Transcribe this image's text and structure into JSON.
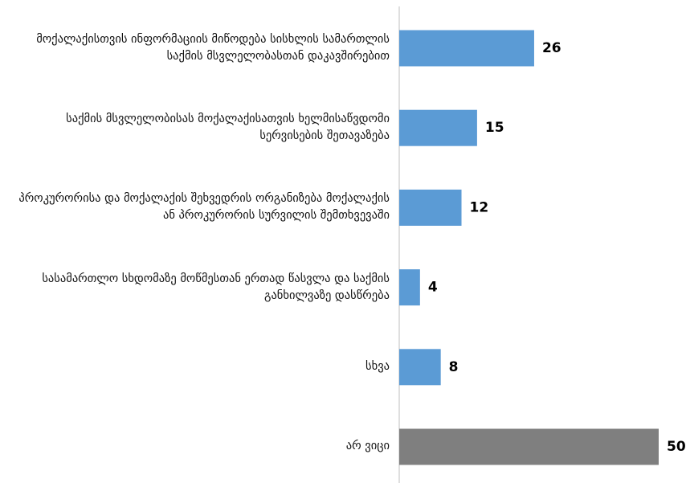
{
  "chart_data": {
    "type": "bar",
    "orientation": "horizontal",
    "categories": [
      "მოქალაქისთვის ინფორმაციის მიწოდება სისხლის სამართლის საქმის მსვლელობასთან დაკავშირებით",
      "საქმის მსვლელობისას მოქალაქისათვის ხელმისაწვდომი სერვისების შეთავაზება",
      "პროკურორისა და მოქალაქის შეხვედრის ორგანიზება მოქალაქის ან პროკურორის სურვილის შემთხვევაში",
      "სასამართლო სხდომაზე მოწმესთან ერთად წასვლა და საქმის განხილვაზე დასწრება",
      "სხვა",
      "არ ვიცი"
    ],
    "values": [
      26,
      15,
      12,
      4,
      8,
      50
    ],
    "colors": [
      "#5b9bd5",
      "#5b9bd5",
      "#5b9bd5",
      "#5b9bd5",
      "#5b9bd5",
      "#7f7f7f"
    ]
  }
}
